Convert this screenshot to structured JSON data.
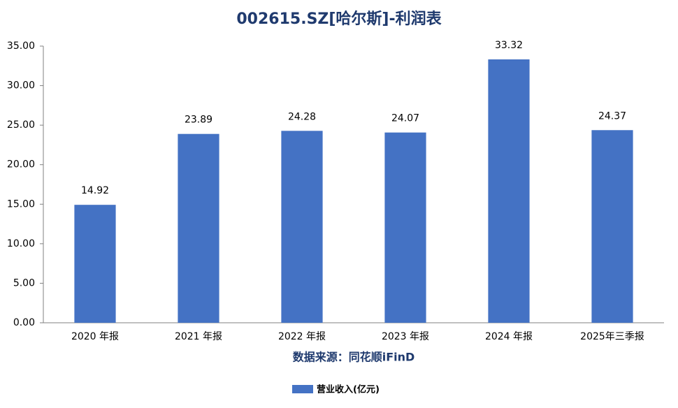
{
  "chart_data": {
    "type": "bar",
    "title": "002615.SZ[哈尔斯]-利润表",
    "categories": [
      "2020 年报",
      "2021 年报",
      "2022 年报",
      "2023 年报",
      "2024 年报",
      "2025年三季报"
    ],
    "series": [
      {
        "name": "营业收入(亿元)",
        "color": "#4472c4",
        "values": [
          14.92,
          23.89,
          24.28,
          24.07,
          33.32,
          24.37
        ]
      }
    ],
    "ylim": [
      0,
      35
    ],
    "yticks": [
      {
        "value": 0,
        "label": "0.00"
      },
      {
        "value": 5,
        "label": "5.00"
      },
      {
        "value": 10,
        "label": "10.00"
      },
      {
        "value": 15,
        "label": "15.00"
      },
      {
        "value": 20,
        "label": "20.00"
      },
      {
        "value": 25,
        "label": "25.00"
      },
      {
        "value": 30,
        "label": "30.00"
      },
      {
        "value": 35,
        "label": "35.00"
      }
    ],
    "grid": false,
    "annotation": "数据来源：同花顺iFinD",
    "legend": "bottom"
  }
}
